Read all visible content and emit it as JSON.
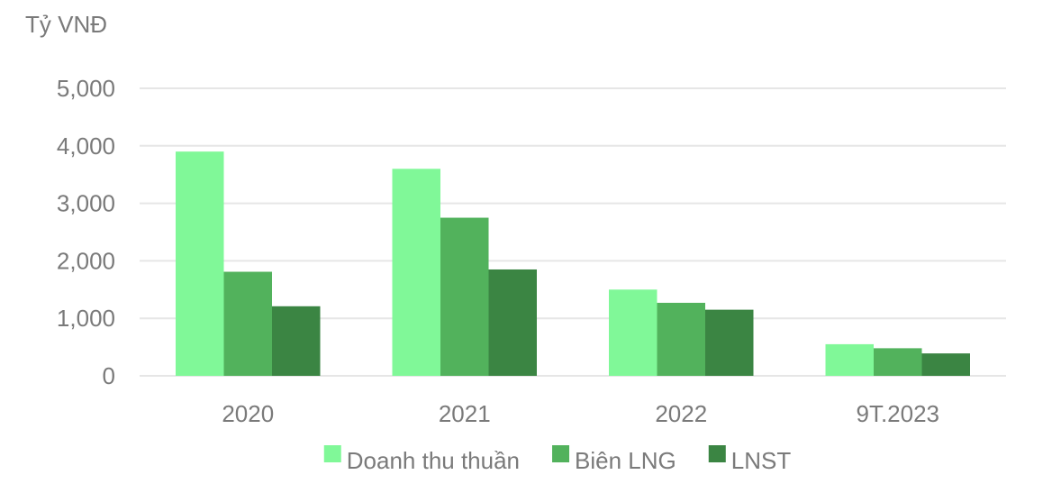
{
  "chart_data": {
    "type": "bar",
    "unit_label": "Tỷ VNĐ",
    "categories": [
      "2020",
      "2021",
      "2022",
      "9T.2023"
    ],
    "series": [
      {
        "name": "Doanh thu thuần",
        "color": "#80f898",
        "values": [
          3900,
          3600,
          1500,
          550
        ]
      },
      {
        "name": "Biên LNG",
        "color": "#52b25c",
        "values": [
          1810,
          2750,
          1270,
          480
        ]
      },
      {
        "name": "LNST",
        "color": "#3b8543",
        "values": [
          1210,
          1850,
          1150,
          390
        ]
      }
    ],
    "y_ticks": [
      "5,000",
      "4,000",
      "3,000",
      "2,000",
      "1,000",
      "0"
    ],
    "ylim": [
      0,
      5000
    ],
    "grid": true,
    "legend_position": "bottom-center",
    "colors": {
      "gridline": "#e6e6e6",
      "text": "#7a7a7a"
    }
  }
}
